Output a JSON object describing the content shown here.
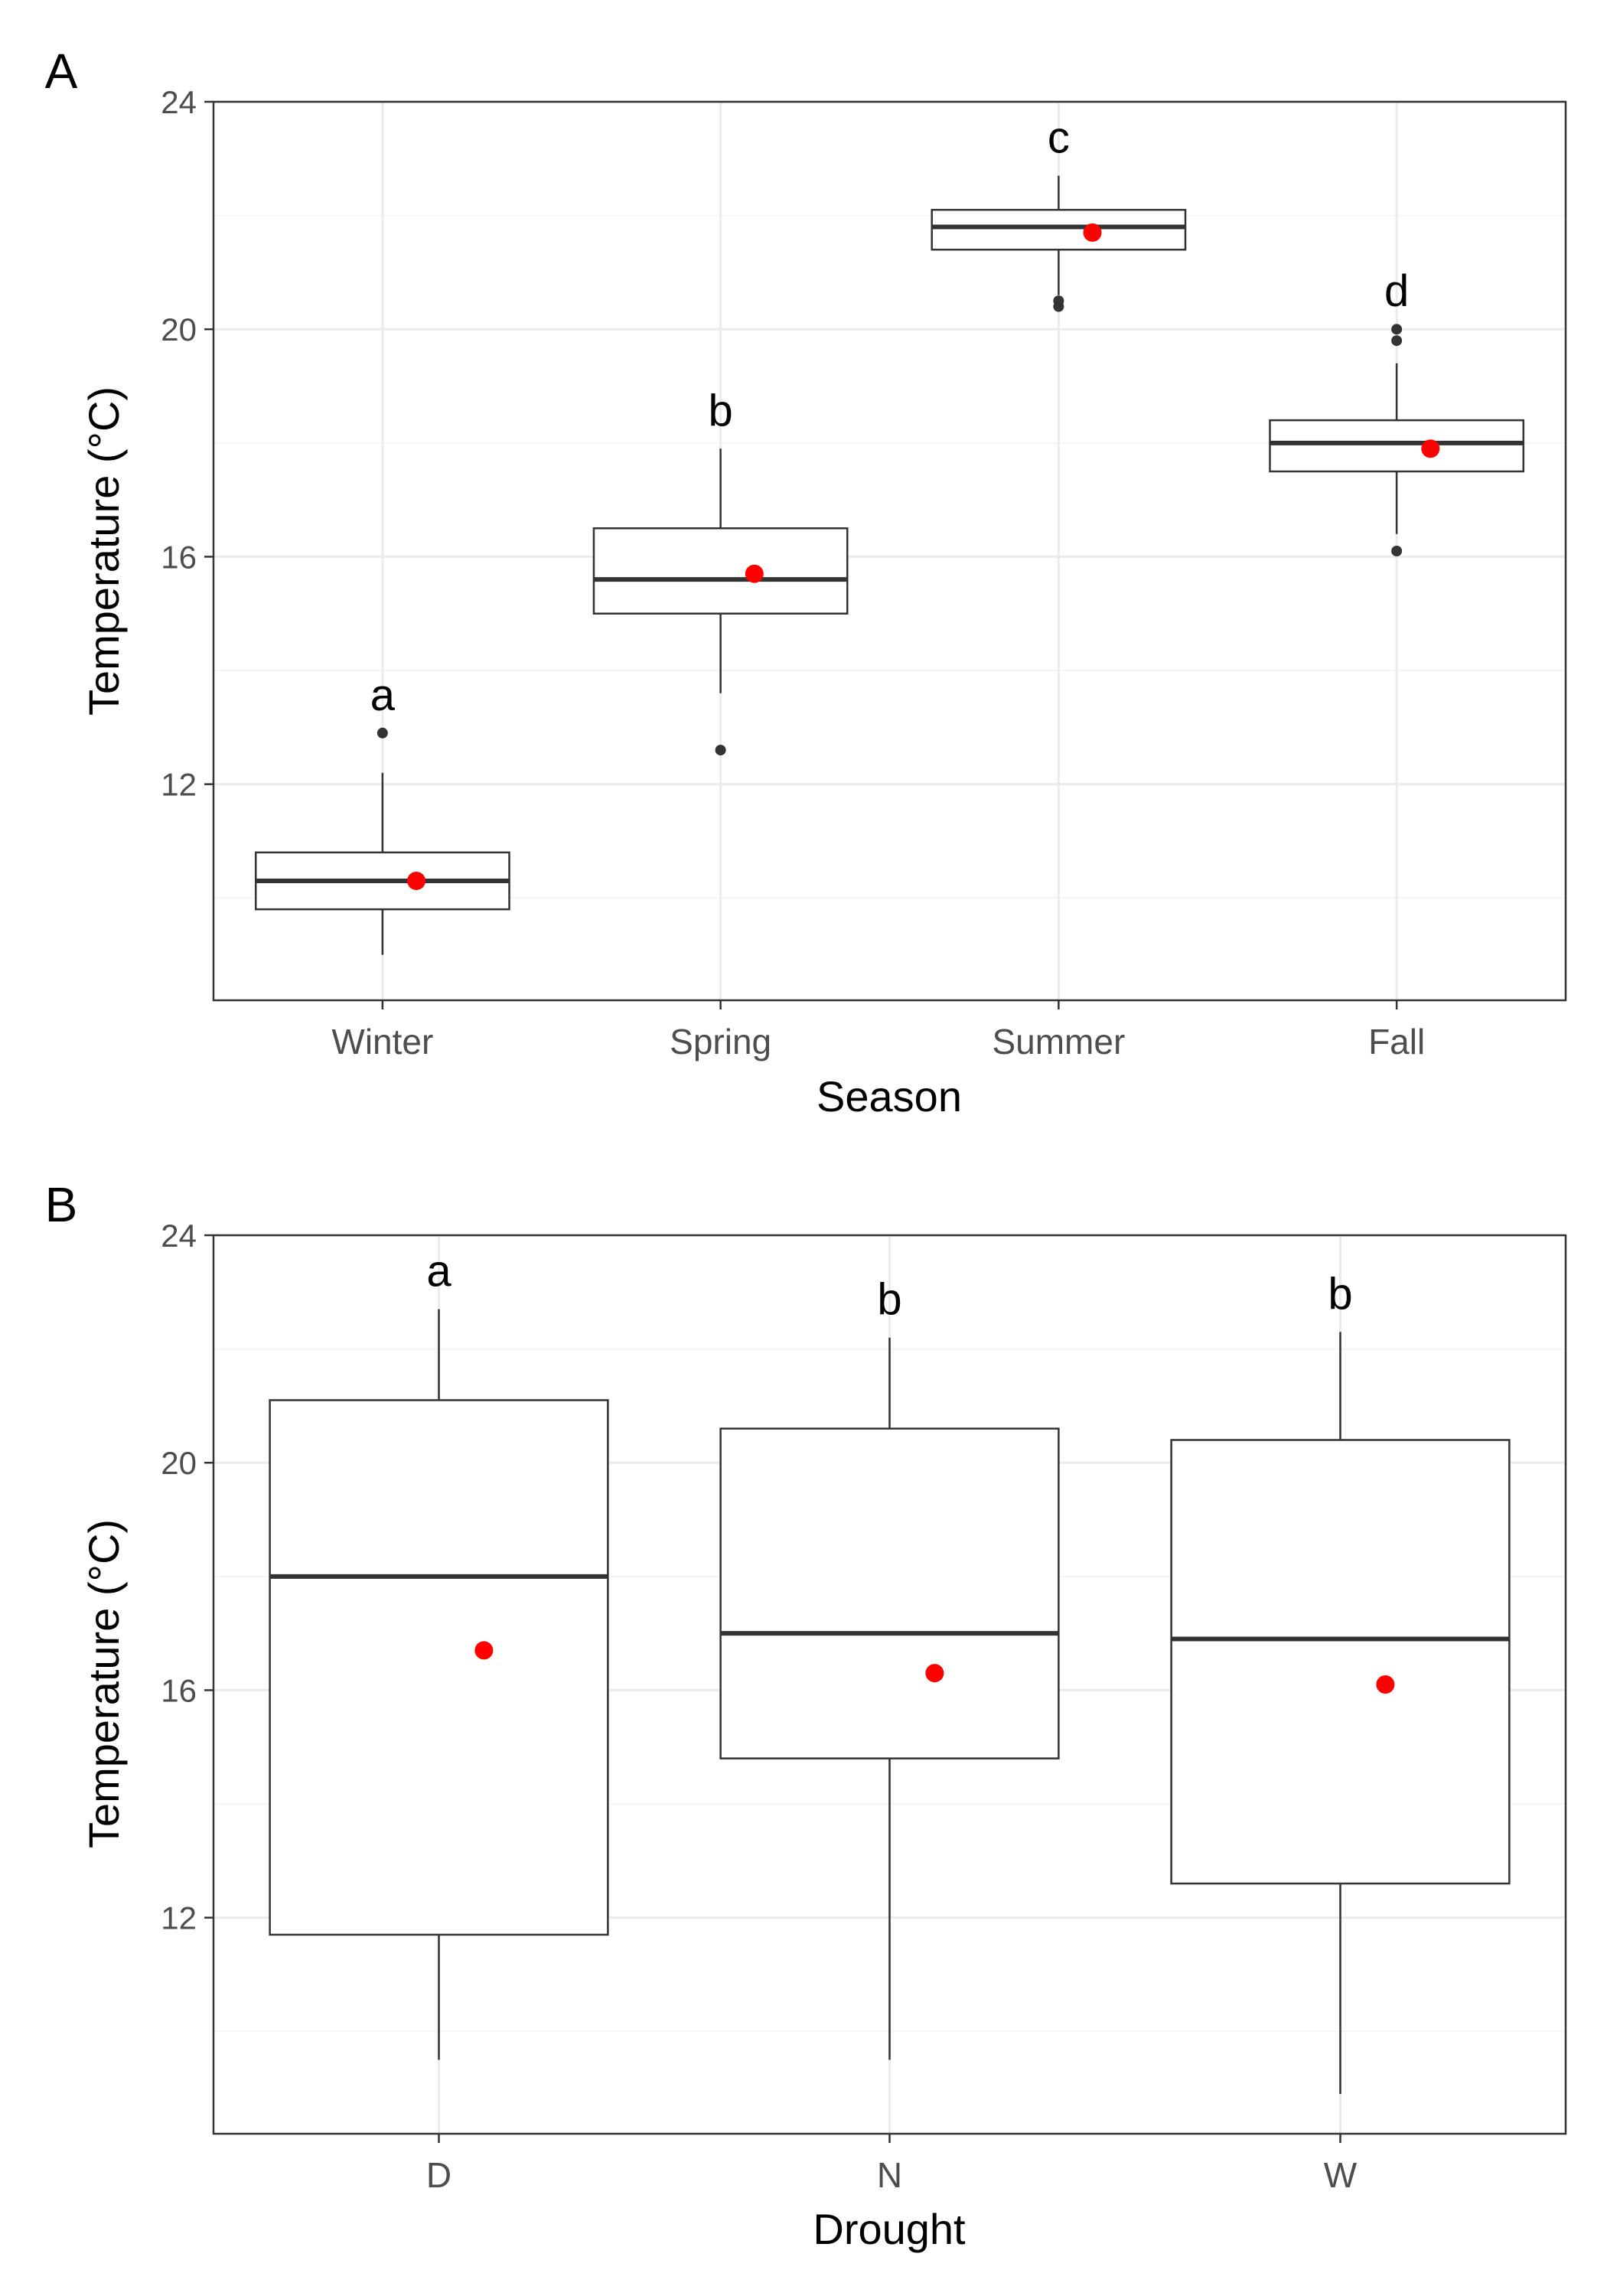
{
  "chart_data": [
    {
      "type": "box",
      "panel_label": "A",
      "xlabel": "Season",
      "ylabel": "Temperature (°C)",
      "ylim": [
        8.2,
        24
      ],
      "yticks": [
        12,
        16,
        20,
        24
      ],
      "grid": true,
      "categories": [
        "Winter",
        "Spring",
        "Summer",
        "Fall"
      ],
      "boxes": [
        {
          "category": "Winter",
          "whisker_low": 9.0,
          "q1": 9.8,
          "median": 10.3,
          "q3": 10.8,
          "whisker_high": 12.2,
          "outliers": [
            12.9
          ],
          "mean": 10.3,
          "letter": "a"
        },
        {
          "category": "Spring",
          "whisker_low": 13.6,
          "q1": 15.0,
          "median": 15.6,
          "q3": 16.5,
          "whisker_high": 17.9,
          "outliers": [
            12.6
          ],
          "mean": 15.7,
          "letter": "b"
        },
        {
          "category": "Summer",
          "whisker_low": 20.6,
          "q1": 21.4,
          "median": 21.8,
          "q3": 22.1,
          "whisker_high": 22.7,
          "outliers": [
            20.4,
            20.5
          ],
          "mean": 21.7,
          "letter": "c"
        },
        {
          "category": "Fall",
          "whisker_low": 16.4,
          "q1": 17.5,
          "median": 18.0,
          "q3": 18.4,
          "whisker_high": 19.4,
          "outliers": [
            16.1,
            19.8,
            20.0
          ],
          "mean": 17.9,
          "letter": "d"
        }
      ],
      "mean_color": "#ff0000"
    },
    {
      "type": "box",
      "panel_label": "B",
      "xlabel": "Drought",
      "ylabel": "Temperature (°C)",
      "ylim": [
        8.2,
        24
      ],
      "yticks": [
        12,
        16,
        20,
        24
      ],
      "grid": true,
      "categories": [
        "D",
        "N",
        "W"
      ],
      "boxes": [
        {
          "category": "D",
          "whisker_low": 9.5,
          "q1": 11.7,
          "median": 18.0,
          "q3": 21.1,
          "whisker_high": 22.7,
          "outliers": [],
          "mean": 16.7,
          "letter": "a"
        },
        {
          "category": "N",
          "whisker_low": 9.5,
          "q1": 14.8,
          "median": 17.0,
          "q3": 20.6,
          "whisker_high": 22.2,
          "outliers": [],
          "mean": 16.3,
          "letter": "b"
        },
        {
          "category": "W",
          "whisker_low": 8.9,
          "q1": 12.6,
          "median": 16.9,
          "q3": 20.4,
          "whisker_high": 22.3,
          "outliers": [],
          "mean": 16.1,
          "letter": "b"
        }
      ],
      "mean_color": "#ff0000"
    }
  ]
}
